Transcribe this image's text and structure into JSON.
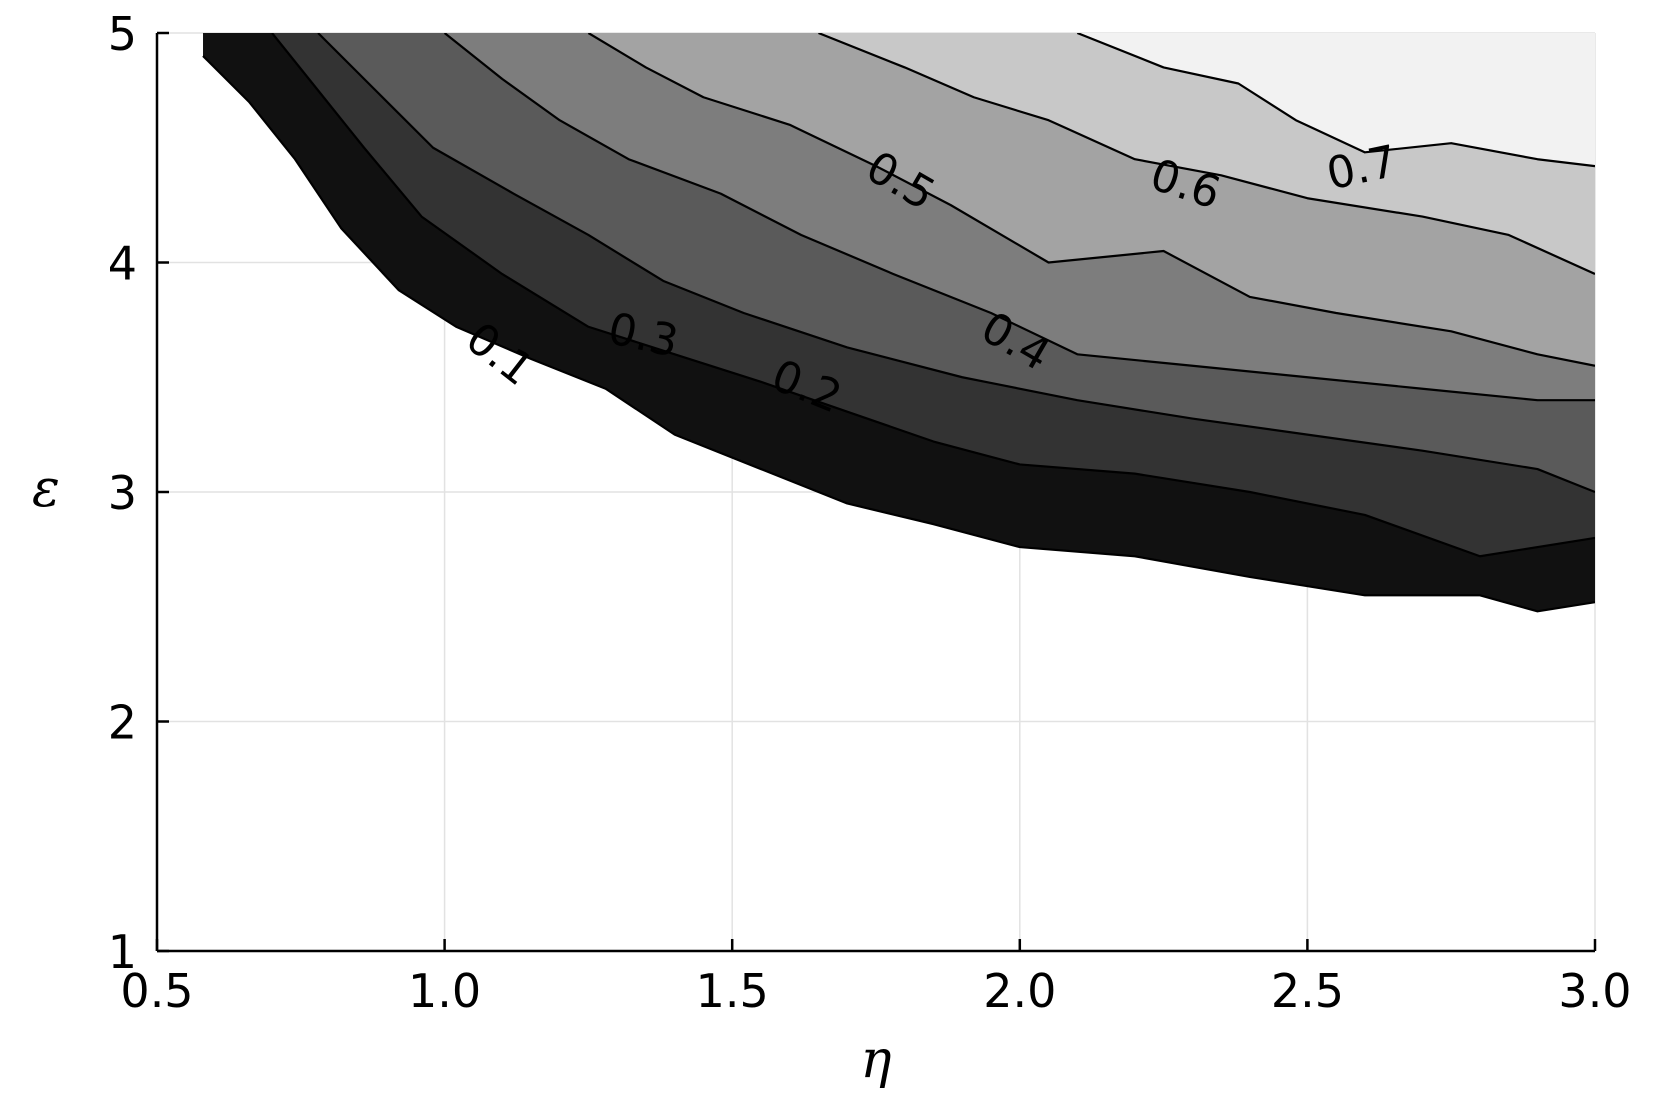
{
  "chart_data": {
    "type": "contour",
    "title": "",
    "xlabel": "η",
    "ylabel": "ε",
    "xlim": [
      0.5,
      3.0
    ],
    "ylim": [
      1,
      5
    ],
    "x_ticks": [
      {
        "value": 0.5,
        "label": "0.5"
      },
      {
        "value": 1.0,
        "label": "1.0"
      },
      {
        "value": 1.5,
        "label": "1.5"
      },
      {
        "value": 2.0,
        "label": "2.0"
      },
      {
        "value": 2.5,
        "label": "2.5"
      },
      {
        "value": 3.0,
        "label": "3.0"
      }
    ],
    "y_ticks": [
      {
        "value": 1,
        "label": "1"
      },
      {
        "value": 2,
        "label": "2"
      },
      {
        "value": 3,
        "label": "3"
      },
      {
        "value": 4,
        "label": "4"
      },
      {
        "value": 5,
        "label": "5"
      }
    ],
    "grid": true,
    "colormap": "grayscale",
    "fill_colors": [
      "#111111",
      "#333333",
      "#5a5a5a",
      "#7d7d7d",
      "#a3a3a3",
      "#c8c8c8",
      "#f2f2f2"
    ],
    "levels": [
      {
        "value": 0.1,
        "label": "0.1",
        "curve": [
          [
            0.58,
            4.9
          ],
          [
            0.66,
            4.7
          ],
          [
            0.74,
            4.45
          ],
          [
            0.82,
            4.15
          ],
          [
            0.92,
            3.88
          ],
          [
            1.02,
            3.72
          ],
          [
            1.15,
            3.58
          ],
          [
            1.28,
            3.45
          ],
          [
            1.4,
            3.25
          ],
          [
            1.55,
            3.1
          ],
          [
            1.7,
            2.95
          ],
          [
            1.85,
            2.86
          ],
          [
            2.0,
            2.76
          ],
          [
            2.2,
            2.72
          ],
          [
            2.4,
            2.63
          ],
          [
            2.6,
            2.55
          ],
          [
            2.8,
            2.55
          ],
          [
            2.9,
            2.48
          ],
          [
            3.0,
            2.52
          ]
        ],
        "label_at": [
          1.08,
          3.55
        ],
        "label_angle": 38
      },
      {
        "value": 0.2,
        "label": "0.2",
        "curve": [
          [
            0.7,
            5.0
          ],
          [
            0.78,
            4.75
          ],
          [
            0.86,
            4.5
          ],
          [
            0.96,
            4.2
          ],
          [
            1.1,
            3.95
          ],
          [
            1.25,
            3.72
          ],
          [
            1.4,
            3.6
          ],
          [
            1.55,
            3.48
          ],
          [
            1.7,
            3.35
          ],
          [
            1.85,
            3.22
          ],
          [
            2.0,
            3.12
          ],
          [
            2.2,
            3.08
          ],
          [
            2.4,
            3.0
          ],
          [
            2.6,
            2.9
          ],
          [
            2.8,
            2.72
          ],
          [
            3.0,
            2.8
          ]
        ],
        "label_at": [
          1.62,
          3.4
        ],
        "label_angle": 22
      },
      {
        "value": 0.3,
        "label": "0.3",
        "curve": [
          [
            0.78,
            5.0
          ],
          [
            0.88,
            4.75
          ],
          [
            0.98,
            4.5
          ],
          [
            1.12,
            4.3
          ],
          [
            1.25,
            4.12
          ],
          [
            1.38,
            3.92
          ],
          [
            1.52,
            3.78
          ],
          [
            1.7,
            3.63
          ],
          [
            1.9,
            3.5
          ],
          [
            2.1,
            3.4
          ],
          [
            2.3,
            3.32
          ],
          [
            2.5,
            3.25
          ],
          [
            2.7,
            3.18
          ],
          [
            2.9,
            3.1
          ],
          [
            3.0,
            3.0
          ]
        ],
        "label_at": [
          1.34,
          3.62
        ],
        "label_angle": 12
      },
      {
        "value": 0.4,
        "label": "0.4",
        "curve": [
          [
            1.0,
            5.0
          ],
          [
            1.1,
            4.8
          ],
          [
            1.2,
            4.62
          ],
          [
            1.32,
            4.45
          ],
          [
            1.48,
            4.3
          ],
          [
            1.62,
            4.12
          ],
          [
            1.78,
            3.95
          ],
          [
            1.95,
            3.78
          ],
          [
            2.1,
            3.6
          ],
          [
            2.3,
            3.55
          ],
          [
            2.5,
            3.5
          ],
          [
            2.7,
            3.45
          ],
          [
            2.9,
            3.4
          ],
          [
            3.0,
            3.4
          ]
        ],
        "label_at": [
          1.98,
          3.6
        ],
        "label_angle": 30
      },
      {
        "value": 0.5,
        "label": "0.5",
        "curve": [
          [
            1.25,
            5.0
          ],
          [
            1.35,
            4.85
          ],
          [
            1.45,
            4.72
          ],
          [
            1.6,
            4.6
          ],
          [
            1.75,
            4.42
          ],
          [
            1.88,
            4.25
          ],
          [
            2.05,
            4.0
          ],
          [
            2.25,
            4.05
          ],
          [
            2.4,
            3.85
          ],
          [
            2.55,
            3.78
          ],
          [
            2.75,
            3.7
          ],
          [
            2.9,
            3.6
          ],
          [
            3.0,
            3.55
          ]
        ],
        "label_at": [
          1.78,
          4.3
        ],
        "label_angle": 30
      },
      {
        "value": 0.6,
        "label": "0.6",
        "curve": [
          [
            1.65,
            5.0
          ],
          [
            1.8,
            4.85
          ],
          [
            1.92,
            4.72
          ],
          [
            2.05,
            4.62
          ],
          [
            2.2,
            4.45
          ],
          [
            2.35,
            4.38
          ],
          [
            2.5,
            4.28
          ],
          [
            2.7,
            4.2
          ],
          [
            2.85,
            4.12
          ],
          [
            3.0,
            3.95
          ]
        ],
        "label_at": [
          2.28,
          4.28
        ],
        "label_angle": 18
      },
      {
        "value": 0.7,
        "label": "0.7",
        "curve": [
          [
            2.1,
            5.0
          ],
          [
            2.25,
            4.85
          ],
          [
            2.38,
            4.78
          ],
          [
            2.48,
            4.62
          ],
          [
            2.6,
            4.48
          ],
          [
            2.75,
            4.52
          ],
          [
            2.9,
            4.45
          ],
          [
            3.0,
            4.42
          ]
        ],
        "label_at": [
          2.6,
          4.35
        ],
        "label_angle": -12
      }
    ]
  }
}
